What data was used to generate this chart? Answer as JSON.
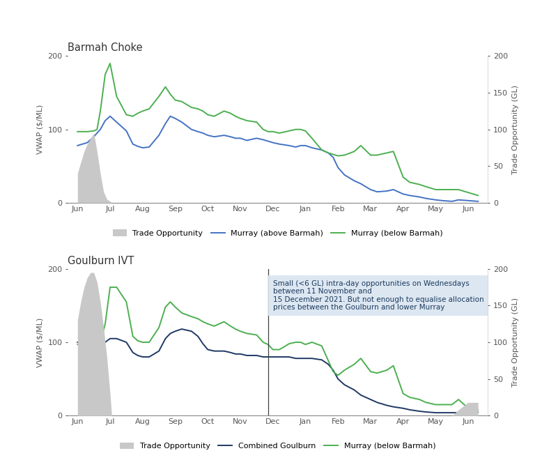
{
  "top_title": "Barmah Choke",
  "bottom_title": "Goulburn IVT",
  "ylabel_left": "VWAP ($/ML)",
  "ylabel_right": "Trade Opportunity (GL)",
  "background_color": "#ffffff",
  "months_labels": [
    "Jun",
    "Jul",
    "Aug",
    "Sep",
    "Oct",
    "Nov",
    "Dec",
    "Jan",
    "Feb",
    "Mar",
    "Apr",
    "May",
    "Jun"
  ],
  "month_positions": [
    0,
    1,
    2,
    3,
    4,
    5,
    6,
    7,
    8,
    9,
    10,
    11,
    12
  ],
  "top_trade_opp_x": [
    0.0,
    0.1,
    0.2,
    0.3,
    0.4,
    0.5,
    0.6,
    0.7,
    0.8,
    0.9,
    1.0,
    1.05,
    12.3
  ],
  "top_trade_opp_y": [
    40,
    55,
    70,
    80,
    88,
    95,
    70,
    40,
    15,
    5,
    2,
    0,
    0
  ],
  "top_murray_above_x": [
    0.0,
    0.15,
    0.3,
    0.5,
    0.6,
    0.7,
    0.85,
    1.0,
    1.2,
    1.5,
    1.7,
    1.85,
    2.0,
    2.2,
    2.5,
    2.7,
    2.85,
    3.0,
    3.2,
    3.5,
    3.7,
    3.85,
    4.0,
    4.2,
    4.5,
    4.7,
    4.85,
    5.0,
    5.2,
    5.5,
    5.7,
    5.85,
    6.0,
    6.2,
    6.5,
    6.7,
    6.85,
    7.0,
    7.2,
    7.5,
    7.7,
    7.85,
    8.0,
    8.2,
    8.5,
    8.7,
    9.0,
    9.2,
    9.5,
    9.7,
    10.0,
    10.2,
    10.5,
    10.7,
    11.0,
    11.2,
    11.5,
    11.7,
    12.0,
    12.3
  ],
  "top_murray_above_y": [
    78,
    80,
    82,
    90,
    95,
    100,
    112,
    118,
    110,
    98,
    80,
    77,
    75,
    76,
    92,
    108,
    118,
    115,
    110,
    100,
    97,
    95,
    92,
    90,
    92,
    90,
    88,
    88,
    85,
    88,
    86,
    84,
    82,
    80,
    78,
    76,
    78,
    78,
    75,
    72,
    68,
    62,
    48,
    38,
    30,
    26,
    18,
    15,
    16,
    18,
    12,
    10,
    8,
    6,
    4,
    3,
    2,
    4,
    3,
    2
  ],
  "top_murray_below_x": [
    0.0,
    0.15,
    0.3,
    0.5,
    0.6,
    0.7,
    0.85,
    1.0,
    1.2,
    1.5,
    1.7,
    1.85,
    2.0,
    2.2,
    2.5,
    2.7,
    2.85,
    3.0,
    3.2,
    3.5,
    3.7,
    3.85,
    4.0,
    4.2,
    4.5,
    4.7,
    4.85,
    5.0,
    5.2,
    5.5,
    5.7,
    5.85,
    6.0,
    6.2,
    6.5,
    6.7,
    6.85,
    7.0,
    7.2,
    7.5,
    7.7,
    7.85,
    8.0,
    8.2,
    8.5,
    8.7,
    9.0,
    9.2,
    9.5,
    9.7,
    10.0,
    10.2,
    10.5,
    10.7,
    11.0,
    11.2,
    11.5,
    11.7,
    12.0,
    12.3
  ],
  "top_murray_below_y": [
    97,
    97,
    97,
    98,
    100,
    125,
    175,
    190,
    145,
    120,
    118,
    122,
    125,
    128,
    145,
    158,
    148,
    140,
    138,
    130,
    128,
    125,
    120,
    118,
    125,
    122,
    118,
    115,
    112,
    110,
    100,
    97,
    97,
    95,
    98,
    100,
    100,
    98,
    88,
    72,
    68,
    66,
    64,
    65,
    70,
    78,
    65,
    65,
    68,
    70,
    35,
    28,
    25,
    22,
    18,
    18,
    18,
    18,
    14,
    10
  ],
  "bottom_trade_opp_x": [
    0.0,
    0.1,
    0.2,
    0.3,
    0.4,
    0.5,
    0.6,
    0.7,
    0.8,
    0.9,
    1.0,
    1.05,
    11.5,
    11.7,
    12.0,
    12.3
  ],
  "bottom_trade_opp_y": [
    130,
    155,
    175,
    188,
    195,
    195,
    182,
    155,
    120,
    80,
    30,
    0,
    0,
    8,
    18,
    18
  ],
  "bottom_goulburn_x": [
    0.0,
    0.15,
    0.3,
    0.5,
    0.6,
    0.7,
    0.85,
    1.0,
    1.2,
    1.5,
    1.7,
    1.85,
    2.0,
    2.2,
    2.5,
    2.7,
    2.85,
    3.0,
    3.2,
    3.5,
    3.7,
    3.85,
    4.0,
    4.2,
    4.5,
    4.7,
    4.85,
    5.0,
    5.2,
    5.5,
    5.7,
    5.85,
    6.0,
    6.2,
    6.5,
    6.7,
    6.85,
    7.0,
    7.2,
    7.5,
    7.7,
    7.85,
    8.0,
    8.2,
    8.5,
    8.7,
    9.0,
    9.2,
    9.5,
    9.7,
    10.0,
    10.2,
    10.5,
    10.7,
    11.0,
    11.2,
    11.5,
    11.7,
    12.0,
    12.3
  ],
  "bottom_goulburn_y": [
    100,
    100,
    102,
    105,
    100,
    98,
    100,
    105,
    105,
    100,
    86,
    82,
    80,
    80,
    88,
    105,
    112,
    115,
    118,
    115,
    108,
    98,
    90,
    88,
    88,
    86,
    84,
    84,
    82,
    82,
    80,
    80,
    80,
    80,
    80,
    78,
    78,
    78,
    78,
    76,
    70,
    62,
    50,
    42,
    35,
    28,
    22,
    18,
    14,
    12,
    10,
    8,
    6,
    5,
    4,
    4,
    4,
    4,
    5,
    5
  ],
  "bottom_murray_below_x": [
    0.0,
    0.15,
    0.3,
    0.5,
    0.6,
    0.7,
    0.85,
    1.0,
    1.2,
    1.5,
    1.7,
    1.85,
    2.0,
    2.2,
    2.5,
    2.7,
    2.85,
    3.0,
    3.2,
    3.5,
    3.7,
    3.85,
    4.0,
    4.2,
    4.5,
    4.7,
    4.85,
    5.0,
    5.2,
    5.5,
    5.7,
    5.85,
    6.0,
    6.2,
    6.5,
    6.7,
    6.85,
    7.0,
    7.2,
    7.5,
    7.7,
    7.85,
    8.0,
    8.2,
    8.5,
    8.7,
    9.0,
    9.2,
    9.5,
    9.7,
    10.0,
    10.2,
    10.5,
    10.7,
    11.0,
    11.2,
    11.5,
    11.7,
    12.0,
    12.3
  ],
  "bottom_murray_below_y": [
    97,
    97,
    97,
    97,
    98,
    100,
    125,
    175,
    175,
    155,
    108,
    102,
    100,
    100,
    120,
    148,
    155,
    148,
    140,
    135,
    132,
    128,
    125,
    122,
    128,
    122,
    118,
    115,
    112,
    110,
    100,
    97,
    90,
    90,
    98,
    100,
    100,
    97,
    100,
    95,
    75,
    60,
    55,
    62,
    70,
    78,
    60,
    58,
    62,
    68,
    30,
    25,
    22,
    18,
    15,
    15,
    15,
    22,
    10,
    8
  ],
  "vline_x": 5.85,
  "annotation_text": "Small (<6 GL) intra-day opportunities on Wednesdays\nbetween 11 November and\n15 December 2021. But not enough to equalise allocation\nprices between the Goulburn and lower Murray",
  "annotation_box_color": "#dbe5f1",
  "color_trade_opp": "#c8c8c8",
  "color_murray_above": "#4472c4",
  "color_murray_below": "#4caf50",
  "color_goulburn": "#1f3864",
  "color_vline": "#404040",
  "line_width": 1.4
}
